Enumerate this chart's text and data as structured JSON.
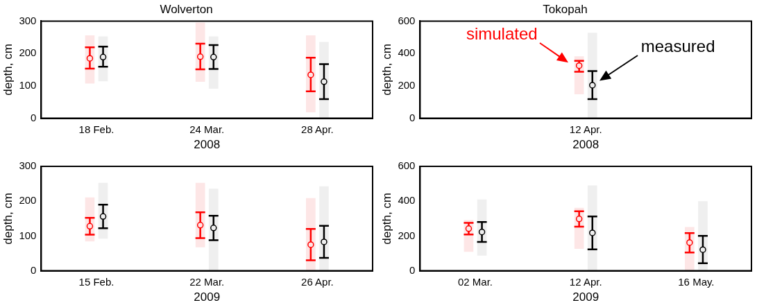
{
  "chart_data": [
    {
      "type": "bar",
      "title": "Wolverton",
      "xlabel": "2008",
      "ylabel": "depth, cm",
      "categories": [
        "18 Feb.",
        "24 Mar.",
        "28 Apr."
      ],
      "ylim": [
        0,
        300
      ],
      "yticks": [
        0,
        100,
        200,
        300
      ],
      "marker": "circle",
      "series": [
        {
          "color": "#fde6e6",
          "base": [
            108,
            113,
            19
          ],
          "values": [
            147,
            182,
            236
          ]
        },
        {
          "color": "#efefef",
          "base": [
            115,
            92,
            0
          ],
          "values": [
            137,
            160,
            235
          ]
        },
        {
          "type": "scatter",
          "color": "#ff0000",
          "values": [
            185,
            190,
            134
          ],
          "errors": [
            [
              153,
              219
            ],
            [
              151,
              230
            ],
            [
              83,
              187
            ]
          ]
        },
        {
          "type": "scatter",
          "color": "#000000",
          "values": [
            189,
            189,
            113
          ],
          "errors": [
            [
              159,
              221
            ],
            [
              152,
              226
            ],
            [
              59,
              167
            ]
          ]
        }
      ]
    },
    {
      "type": "bar",
      "title": "Tokopah",
      "xlabel": "2008",
      "ylabel": "depth, cm",
      "categories": [
        null,
        "12 Apr.",
        null
      ],
      "ylim": [
        0,
        600
      ],
      "yticks": [
        0,
        200,
        400,
        600
      ],
      "marker": "circle",
      "series": [
        {
          "color": "#fde6e6",
          "base": [
            null,
            150,
            null
          ],
          "values": [
            null,
            231,
            null
          ]
        },
        {
          "color": "#efefef",
          "base": [
            null,
            0,
            null
          ],
          "values": [
            null,
            527,
            null
          ]
        },
        {
          "type": "scatter",
          "name": "simulated",
          "color": "#ff0000",
          "values": [
            null,
            325,
            null
          ],
          "errors": [
            null,
            [
              287,
              355
            ],
            null
          ]
        },
        {
          "type": "scatter",
          "name": "measured",
          "color": "#000000",
          "values": [
            null,
            204,
            null
          ],
          "errors": [
            null,
            [
              118,
              291
            ],
            null
          ]
        }
      ]
    },
    {
      "type": "bar",
      "xlabel": "2009",
      "ylabel": "depth, cm",
      "categories": [
        "15 Feb.",
        "22 Mar.",
        "26 Apr."
      ],
      "ylim": [
        0,
        300
      ],
      "yticks": [
        0,
        100,
        200,
        300
      ],
      "marker": "circle",
      "series": [
        {
          "color": "#fde6e6",
          "base": [
            85,
            68,
            0
          ],
          "values": [
            125,
            184,
            208
          ]
        },
        {
          "color": "#efefef",
          "base": [
            93,
            0,
            0
          ],
          "values": [
            159,
            235,
            242
          ]
        },
        {
          "type": "scatter",
          "color": "#ff0000",
          "values": [
            128,
            131,
            75
          ],
          "errors": [
            [
              104,
              152
            ],
            [
              94,
              168
            ],
            [
              30,
              120
            ]
          ]
        },
        {
          "type": "scatter",
          "color": "#000000",
          "values": [
            156,
            123,
            83
          ],
          "errors": [
            [
              122,
              190
            ],
            [
              88,
              158
            ],
            [
              37,
              129
            ]
          ]
        }
      ]
    },
    {
      "type": "bar",
      "xlabel": "2009",
      "ylabel": "depth, cm",
      "categories": [
        "02 Mar.",
        "12 Apr.",
        "16 May."
      ],
      "ylim": [
        0,
        600
      ],
      "yticks": [
        0,
        200,
        400,
        600
      ],
      "marker": "circle",
      "series": [
        {
          "color": "#fde6e6",
          "base": [
            110,
            127,
            0
          ],
          "values": [
            180,
            234,
            250
          ]
        },
        {
          "color": "#efefef",
          "base": [
            88,
            0,
            0
          ],
          "values": [
            320,
            489,
            398
          ]
        },
        {
          "type": "scatter",
          "color": "#ff0000",
          "values": [
            242,
            298,
            162
          ],
          "errors": [
            [
              209,
              275
            ],
            [
              253,
              342
            ],
            [
              105,
              217
            ]
          ]
        },
        {
          "type": "scatter",
          "color": "#000000",
          "values": [
            223,
            218,
            121
          ],
          "errors": [
            [
              166,
              280
            ],
            [
              123,
              312
            ],
            [
              43,
              201
            ]
          ]
        }
      ]
    }
  ]
}
